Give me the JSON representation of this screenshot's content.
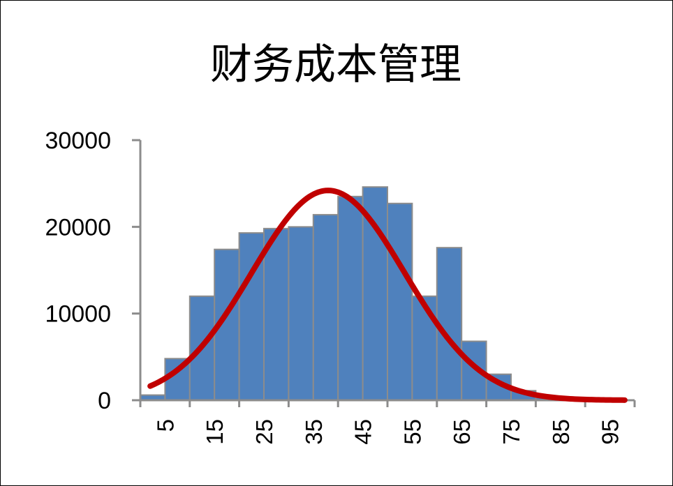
{
  "chart_data": {
    "type": "bar",
    "title": "财务成本管理",
    "xlabel": "",
    "ylabel": "",
    "x_tick_labels": [
      "5",
      "15",
      "25",
      "35",
      "45",
      "55",
      "65",
      "75",
      "85",
      "95"
    ],
    "y_tick_labels": [
      "0",
      "10000",
      "20000",
      "30000"
    ],
    "ylim": [
      0,
      30000
    ],
    "bins": [
      {
        "x0": 0,
        "x1": 5,
        "value": 600
      },
      {
        "x0": 5,
        "x1": 10,
        "value": 4800
      },
      {
        "x0": 10,
        "x1": 15,
        "value": 12000
      },
      {
        "x0": 15,
        "x1": 20,
        "value": 17400
      },
      {
        "x0": 20,
        "x1": 25,
        "value": 19300
      },
      {
        "x0": 25,
        "x1": 30,
        "value": 19800
      },
      {
        "x0": 30,
        "x1": 35,
        "value": 20000
      },
      {
        "x0": 35,
        "x1": 40,
        "value": 21400
      },
      {
        "x0": 40,
        "x1": 45,
        "value": 23500
      },
      {
        "x0": 45,
        "x1": 50,
        "value": 24600
      },
      {
        "x0": 50,
        "x1": 55,
        "value": 22700
      },
      {
        "x0": 55,
        "x1": 60,
        "value": 12000
      },
      {
        "x0": 60,
        "x1": 65,
        "value": 17600
      },
      {
        "x0": 65,
        "x1": 70,
        "value": 6800
      },
      {
        "x0": 70,
        "x1": 75,
        "value": 3000
      },
      {
        "x0": 75,
        "x1": 80,
        "value": 1100
      },
      {
        "x0": 80,
        "x1": 85,
        "value": 300
      },
      {
        "x0": 85,
        "x1": 90,
        "value": 100
      },
      {
        "x0": 90,
        "x1": 95,
        "value": 50
      }
    ],
    "curve": {
      "type": "normal-fit",
      "peak": 24200,
      "mean": 38,
      "sd": 15.5,
      "x_start": 2,
      "x_end": 98
    },
    "xlim": [
      0,
      100
    ],
    "grid": false,
    "legend": "none",
    "colors": {
      "bar_fill": "#4F81BD",
      "bar_edge": "#8C8C8C",
      "curve": "#C00000",
      "axis": "#8C8C8C"
    }
  }
}
